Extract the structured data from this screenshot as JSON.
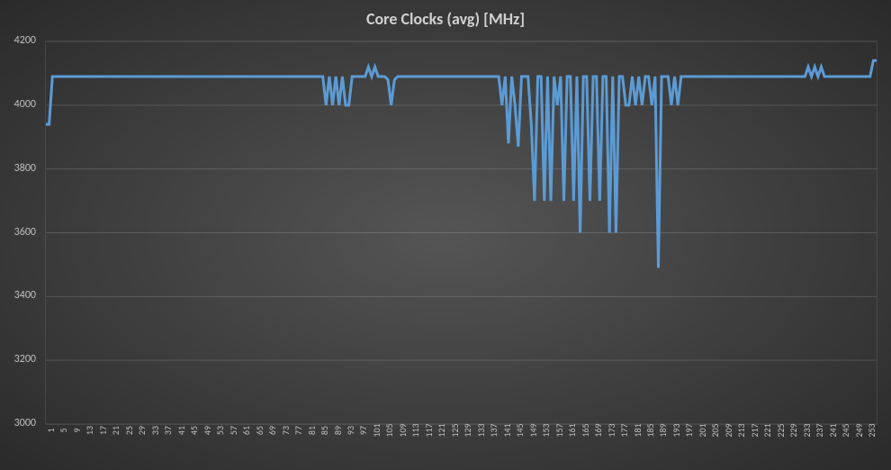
{
  "chart": {
    "type": "line",
    "title": "Core Clocks (avg) [MHz]",
    "title_fontsize": 18,
    "title_color": "#d0d0d0",
    "background_gradient_inner": "#555555",
    "background_gradient_outer": "#2a2a2a",
    "axis_label_color": "#c0c0c0",
    "axis_label_fontsize": 12,
    "grid_color": "rgba(255,255,255,0.15)",
    "line_color": "#5b9bd5",
    "line_width": 3,
    "ylim": [
      3000,
      4200
    ],
    "ytick_step": 200,
    "yticks": [
      3000,
      3200,
      3400,
      3600,
      3800,
      4000,
      4200
    ],
    "x_categories_start": 1,
    "x_categories_end": 256,
    "x_tick_step": 4,
    "x_tick_labels": [
      1,
      5,
      9,
      13,
      17,
      21,
      25,
      29,
      33,
      37,
      41,
      45,
      49,
      53,
      57,
      61,
      65,
      69,
      73,
      77,
      81,
      85,
      89,
      93,
      97,
      101,
      105,
      109,
      113,
      117,
      121,
      125,
      129,
      133,
      137,
      141,
      145,
      149,
      153,
      157,
      161,
      165,
      169,
      173,
      177,
      181,
      185,
      189,
      193,
      197,
      201,
      205,
      209,
      213,
      217,
      221,
      225,
      229,
      233,
      237,
      241,
      245,
      249,
      253
    ],
    "series": {
      "name": "Core Clocks (avg)",
      "values": [
        3940,
        3940,
        4090,
        4090,
        4090,
        4090,
        4090,
        4090,
        4090,
        4090,
        4090,
        4090,
        4090,
        4090,
        4090,
        4090,
        4090,
        4090,
        4090,
        4090,
        4090,
        4090,
        4090,
        4090,
        4090,
        4090,
        4090,
        4090,
        4090,
        4090,
        4090,
        4090,
        4090,
        4090,
        4090,
        4090,
        4090,
        4090,
        4090,
        4090,
        4090,
        4090,
        4090,
        4090,
        4090,
        4090,
        4090,
        4090,
        4090,
        4090,
        4090,
        4090,
        4090,
        4090,
        4090,
        4090,
        4090,
        4090,
        4090,
        4090,
        4090,
        4090,
        4090,
        4090,
        4090,
        4090,
        4090,
        4090,
        4090,
        4090,
        4090,
        4090,
        4090,
        4090,
        4090,
        4090,
        4090,
        4090,
        4090,
        4090,
        4090,
        4090,
        4090,
        4090,
        4090,
        4090,
        4000,
        4090,
        4000,
        4090,
        4000,
        4090,
        4000,
        4000,
        4090,
        4090,
        4090,
        4090,
        4090,
        4120,
        4090,
        4120,
        4090,
        4090,
        4090,
        4080,
        4000,
        4080,
        4090,
        4090,
        4090,
        4090,
        4090,
        4090,
        4090,
        4090,
        4090,
        4090,
        4090,
        4090,
        4090,
        4090,
        4090,
        4090,
        4090,
        4090,
        4090,
        4090,
        4090,
        4090,
        4090,
        4090,
        4090,
        4090,
        4090,
        4090,
        4090,
        4090,
        4090,
        4090,
        4000,
        4090,
        3880,
        4090,
        4000,
        3870,
        4090,
        4090,
        4090,
        3940,
        3700,
        4090,
        4090,
        3700,
        4090,
        3700,
        4090,
        4000,
        4090,
        3700,
        4090,
        4090,
        3700,
        4090,
        3600,
        4090,
        4090,
        3700,
        4090,
        4090,
        3700,
        4090,
        4090,
        3600,
        4090,
        3600,
        4090,
        4090,
        4000,
        4000,
        4090,
        4000,
        4090,
        4000,
        4090,
        4090,
        4000,
        4090,
        3490,
        4090,
        4090,
        4090,
        4000,
        4090,
        4000,
        4090,
        4090,
        4090,
        4090,
        4090,
        4090,
        4090,
        4090,
        4090,
        4090,
        4090,
        4090,
        4090,
        4090,
        4090,
        4090,
        4090,
        4090,
        4090,
        4090,
        4090,
        4090,
        4090,
        4090,
        4090,
        4090,
        4090,
        4090,
        4090,
        4090,
        4090,
        4090,
        4090,
        4090,
        4090,
        4090,
        4090,
        4090,
        4090,
        4120,
        4090,
        4120,
        4090,
        4120,
        4090,
        4090,
        4090,
        4090,
        4090,
        4090,
        4090,
        4090,
        4090,
        4090,
        4090,
        4090,
        4090,
        4090,
        4090,
        4140,
        4140
      ]
    }
  }
}
